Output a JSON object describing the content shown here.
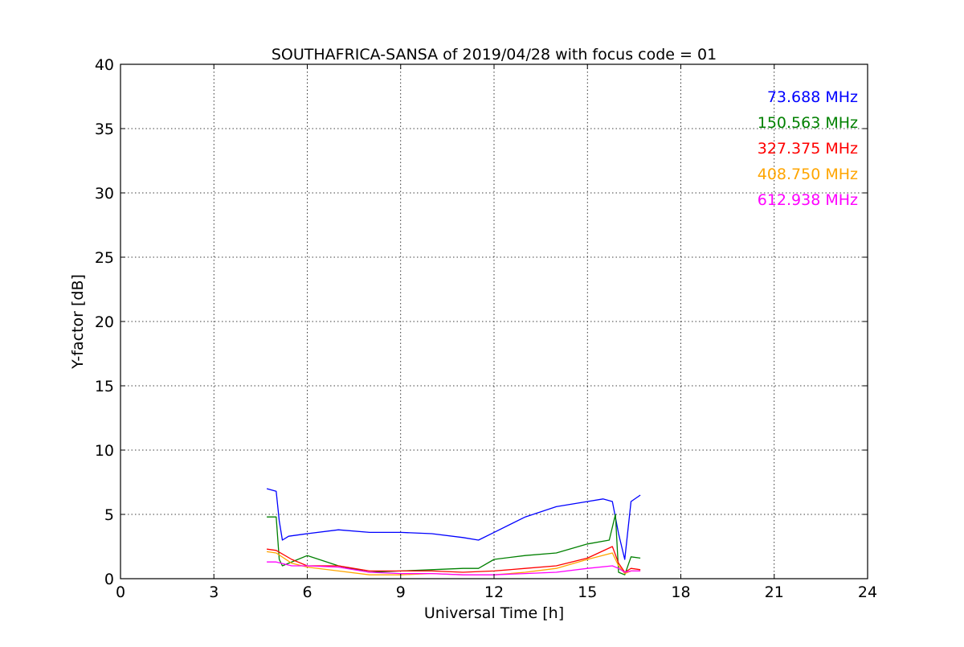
{
  "chart_data": {
    "type": "line",
    "title": "SOUTHAFRICA-SANSA of 2019/04/28 with focus code = 01",
    "xlabel": "Universal Time [h]",
    "ylabel": "Y-factor [dB]",
    "xlim": [
      0,
      24
    ],
    "ylim": [
      0,
      40
    ],
    "xticks": [
      0,
      3,
      6,
      9,
      12,
      15,
      18,
      21,
      24
    ],
    "yticks": [
      0,
      5,
      10,
      15,
      20,
      25,
      30,
      35,
      40
    ],
    "grid": true,
    "legend_position": "top-right",
    "series": [
      {
        "name": "73.688 MHz",
        "color": "#0000ff",
        "x": [
          4.7,
          5.0,
          5.1,
          5.2,
          5.4,
          6.0,
          7.0,
          8.0,
          9.0,
          10.0,
          11.0,
          11.5,
          12.0,
          13.0,
          14.0,
          15.0,
          15.5,
          15.8,
          16.0,
          16.2,
          16.4,
          16.7
        ],
        "y": [
          7.0,
          6.8,
          4.5,
          3.0,
          3.3,
          3.5,
          3.8,
          3.6,
          3.6,
          3.5,
          3.2,
          3.0,
          3.6,
          4.8,
          5.6,
          6.0,
          6.2,
          6.0,
          3.5,
          1.5,
          6.0,
          6.5
        ]
      },
      {
        "name": "150.563 MHz",
        "color": "#008000",
        "x": [
          4.7,
          5.0,
          5.1,
          5.2,
          6.0,
          7.0,
          8.0,
          9.0,
          10.0,
          11.0,
          11.5,
          12.0,
          13.0,
          14.0,
          15.0,
          15.7,
          15.9,
          16.0,
          16.2,
          16.4,
          16.7
        ],
        "y": [
          4.8,
          4.8,
          1.5,
          1.0,
          1.8,
          1.0,
          0.5,
          0.6,
          0.7,
          0.8,
          0.8,
          1.5,
          1.8,
          2.0,
          2.7,
          3.0,
          5.0,
          0.5,
          0.3,
          1.7,
          1.6
        ]
      },
      {
        "name": "327.375 MHz",
        "color": "#ff0000",
        "x": [
          4.7,
          5.0,
          5.5,
          6.0,
          7.0,
          8.0,
          9.0,
          10.0,
          11.0,
          12.0,
          13.0,
          14.0,
          15.0,
          15.8,
          16.0,
          16.2,
          16.4,
          16.7
        ],
        "y": [
          2.3,
          2.2,
          1.5,
          1.0,
          1.0,
          0.6,
          0.6,
          0.6,
          0.5,
          0.6,
          0.8,
          1.0,
          1.6,
          2.5,
          1.2,
          0.5,
          0.8,
          0.7
        ]
      },
      {
        "name": "408.750 MHz",
        "color": "#ffa500",
        "x": [
          4.7,
          5.0,
          5.5,
          6.0,
          7.0,
          8.0,
          9.0,
          10.0,
          11.0,
          12.0,
          13.0,
          14.0,
          15.0,
          15.8,
          16.0,
          16.2,
          16.4,
          16.7
        ],
        "y": [
          2.1,
          2.0,
          1.2,
          0.9,
          0.6,
          0.3,
          0.3,
          0.4,
          0.3,
          0.3,
          0.5,
          0.8,
          1.5,
          2.0,
          1.0,
          0.4,
          0.6,
          0.6
        ]
      },
      {
        "name": "612.938 MHz",
        "color": "#ff00ff",
        "x": [
          4.7,
          5.0,
          5.5,
          6.0,
          7.0,
          8.0,
          9.0,
          10.0,
          11.0,
          12.0,
          13.0,
          14.0,
          15.0,
          15.8,
          16.0,
          16.2,
          16.4,
          16.7
        ],
        "y": [
          1.3,
          1.3,
          1.0,
          1.0,
          0.9,
          0.5,
          0.4,
          0.4,
          0.3,
          0.3,
          0.4,
          0.5,
          0.8,
          1.0,
          0.8,
          0.5,
          0.6,
          0.6
        ]
      }
    ]
  }
}
